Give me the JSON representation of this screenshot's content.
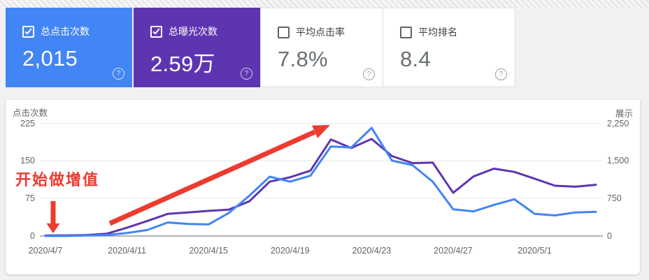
{
  "cards": [
    {
      "label": "总点击次数",
      "value": "2,015",
      "checked": true,
      "style": "blue"
    },
    {
      "label": "总曝光次数",
      "value": "2.59万",
      "checked": true,
      "style": "purple"
    },
    {
      "label": "平均点击率",
      "value": "7.8%",
      "checked": false,
      "style": "white"
    },
    {
      "label": "平均排名",
      "value": "8.4",
      "checked": false,
      "style": "white"
    }
  ],
  "help_icon_glyph": "?",
  "colors": {
    "clicks_blue": "#4285F4",
    "impressions_purple": "#5E35B1",
    "annotation_red": "#ED3B2F",
    "grid_gray": "#e8e8e8",
    "axis_gray": "#80868b",
    "text_gray": "#5f6368"
  },
  "chart_data": {
    "type": "line",
    "x": [
      "2020/4/7",
      "2020/4/8",
      "2020/4/9",
      "2020/4/10",
      "2020/4/11",
      "2020/4/12",
      "2020/4/13",
      "2020/4/14",
      "2020/4/15",
      "2020/4/16",
      "2020/4/17",
      "2020/4/18",
      "2020/4/19",
      "2020/4/20",
      "2020/4/21",
      "2020/4/22",
      "2020/4/23",
      "2020/4/24",
      "2020/4/25",
      "2020/4/26",
      "2020/4/27",
      "2020/4/28",
      "2020/4/29",
      "2020/4/30",
      "2020/5/1",
      "2020/5/2",
      "2020/5/3",
      "2020/5/4"
    ],
    "series": [
      {
        "name": "展示",
        "axis": "right",
        "color": "#5E35B1",
        "values": [
          10,
          12,
          20,
          45,
          165,
          300,
          440,
          470,
          500,
          525,
          690,
          1080,
          1170,
          1300,
          1920,
          1750,
          1930,
          1590,
          1450,
          1460,
          860,
          1185,
          1340,
          1275,
          1140,
          1000,
          980,
          1020
        ]
      },
      {
        "name": "点击次数",
        "axis": "left",
        "color": "#4285F4",
        "values": [
          0,
          0,
          1,
          2,
          6,
          12,
          27,
          24,
          23,
          46,
          80,
          118,
          108,
          120,
          178,
          176,
          215,
          150,
          141,
          108,
          53,
          49,
          62,
          73,
          44,
          41,
          47,
          48
        ]
      }
    ],
    "left_axis": {
      "title": "点击次数",
      "ticks": [
        "225",
        "150",
        "75",
        "0"
      ],
      "range": [
        0,
        225
      ]
    },
    "right_axis": {
      "title": "展示",
      "ticks": [
        "2,250",
        "1,500",
        "750",
        "0"
      ],
      "range": [
        0,
        2250
      ]
    },
    "x_tick_indices": [
      0,
      4,
      8,
      12,
      16,
      20,
      24
    ],
    "x_tick_labels": [
      "2020/4/7",
      "2020/4/11",
      "2020/4/15",
      "2020/4/19",
      "2020/4/23",
      "2020/4/27",
      "2020/5/1"
    ],
    "grid": "horizontal",
    "legend": "none",
    "annotations": {
      "label": {
        "text": "开始做增值"
      },
      "arrows": [
        {
          "type": "down-arrow",
          "desc": "red arrow pointing down at 2020/4/7 baseline"
        },
        {
          "type": "trend-arrow",
          "desc": "red rising arrow across the growth section"
        }
      ]
    }
  }
}
